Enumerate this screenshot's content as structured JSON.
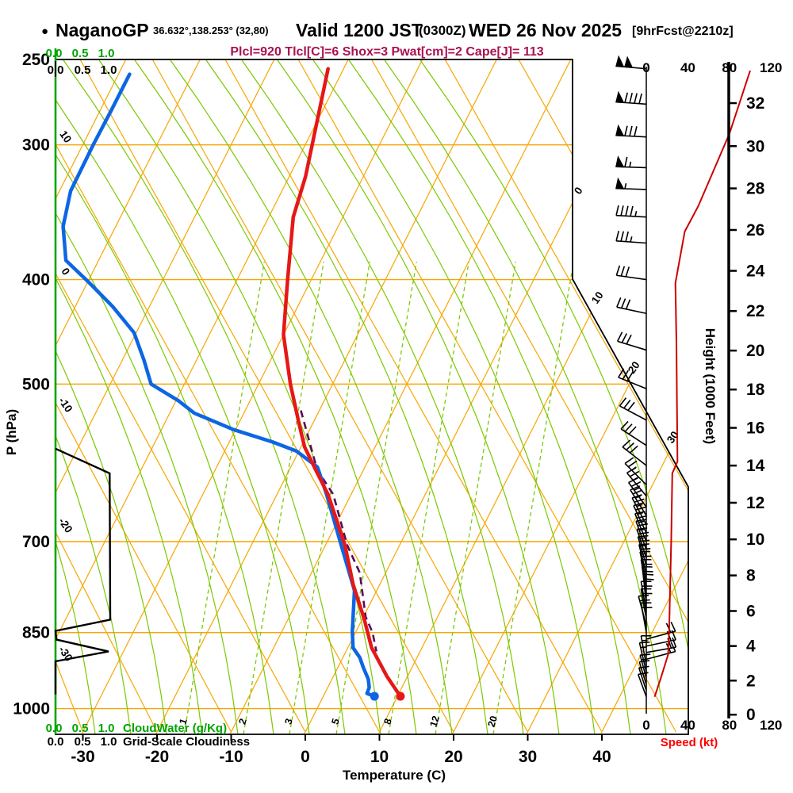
{
  "title": {
    "bullet": "●",
    "station": "NaganoGP",
    "coords": "36.632°,138.253° (32,80)",
    "valid": "Valid 1200 JST",
    "zulu": "(0300Z)",
    "date": "WED 26 Nov 2025",
    "fcst": "[9hrFcst@2210z]"
  },
  "subtitle": "Plcl=920 Tlcl[C]=6 Shox=3 Pwat[cm]=2 Cape[J]= 113",
  "axes": {
    "pressure_label": "P (hPa)",
    "temperature_label": "Temperature (C)",
    "height_label": "Height (1000 Feet)",
    "speed_label": "Speed (kt)"
  },
  "scales": {
    "ticks": [
      "0.0",
      "0.5",
      "1.0"
    ],
    "cloudwater_label": "CloudWater (g/Kg)",
    "cloudiness_label": "Grid-Scale Cloudiness"
  },
  "colors": {
    "isoline_orange": "#f7a600",
    "adiabat_green": "#7cc800",
    "axis_green": "#00a400",
    "temperature_red": "#e61717",
    "dewpoint_blue": "#0c66e4",
    "parcel_purple": "#5a0b5a",
    "speed_red": "#cc0000",
    "label_red": "#ff0000",
    "subtitle_magenta": "#aa1150",
    "black": "#000000"
  },
  "chart_data": {
    "type": "skew-t-log-p sounding",
    "pressure_ticks_hpa": [
      250,
      300,
      400,
      500,
      700,
      850,
      1000
    ],
    "temperature_ticks_c": [
      -30,
      -20,
      -10,
      0,
      10,
      20,
      30,
      40
    ],
    "height_ticks_kft": [
      0,
      2,
      4,
      6,
      8,
      10,
      12,
      14,
      16,
      18,
      20,
      22,
      24,
      26,
      28,
      30,
      32
    ],
    "speed_ticks_kt": [
      0,
      40,
      80,
      120
    ],
    "isotherm_edge_labels_c": [
      0,
      10,
      20,
      30
    ],
    "dry_adiabat_edge_labels_c": [
      10,
      0,
      -10,
      -20,
      -30
    ],
    "mixing_ratio_labels_gkg": [
      1,
      2,
      3,
      5,
      8,
      12,
      20
    ],
    "temperature_profile_p_t": [
      [
        255,
        -42.1
      ],
      [
        321,
        -37.8
      ],
      [
        350,
        -36.7
      ],
      [
        400,
        -33.2
      ],
      [
        450,
        -30.0
      ],
      [
        500,
        -25.7
      ],
      [
        547,
        -21.6
      ],
      [
        572,
        -19.5
      ],
      [
        602,
        -16.3
      ],
      [
        633,
        -13.1
      ],
      [
        705,
        -7.4
      ],
      [
        767,
        -3.6
      ],
      [
        825,
        0.2
      ],
      [
        878,
        3.2
      ],
      [
        933,
        7.2
      ],
      [
        974,
        10.4
      ]
    ],
    "dewpoint_profile_p_t": [
      [
        258,
        -68.5
      ],
      [
        279,
        -68.5
      ],
      [
        300,
        -68.6
      ],
      [
        331,
        -68.5
      ],
      [
        357,
        -67.1
      ],
      [
        384,
        -64.4
      ],
      [
        402,
        -59.9
      ],
      [
        424,
        -54.9
      ],
      [
        448,
        -50.3
      ],
      [
        475,
        -47.1
      ],
      [
        500,
        -44.5
      ],
      [
        518,
        -39.7
      ],
      [
        532,
        -36.7
      ],
      [
        551,
        -30.3
      ],
      [
        566,
        -24.1
      ],
      [
        577,
        -20.3
      ],
      [
        597,
        -16.4
      ],
      [
        633,
        -13.3
      ],
      [
        705,
        -7.9
      ],
      [
        738,
        -5.6
      ],
      [
        777,
        -3.0
      ],
      [
        848,
        -0.5
      ],
      [
        878,
        0.7
      ],
      [
        897,
        2.3
      ],
      [
        917,
        3.5
      ],
      [
        939,
        4.9
      ],
      [
        956,
        5.6
      ],
      [
        968,
        5.7
      ],
      [
        974,
        6.9
      ]
    ],
    "parcel_profile_p_t": [
      [
        529,
        -22.5
      ],
      [
        600,
        -16.3
      ],
      [
        633,
        -12.4
      ],
      [
        705,
        -7.1
      ],
      [
        748,
        -3.5
      ],
      [
        822,
        0.3
      ],
      [
        850,
        2.3
      ],
      [
        885,
        4.1
      ]
    ],
    "wind_speed_profile_p_kt": [
      [
        256,
        100
      ],
      [
        293,
        80
      ],
      [
        342,
        50
      ],
      [
        361,
        37
      ],
      [
        403,
        28
      ],
      [
        458,
        29
      ],
      [
        590,
        30
      ],
      [
        605,
        25
      ],
      [
        700,
        24
      ],
      [
        847,
        22
      ],
      [
        891,
        21
      ],
      [
        937,
        14
      ],
      [
        975,
        8
      ]
    ],
    "wind_barbs_p_kt_dir": [
      [
        255,
        100,
        175
      ],
      [
        275,
        90,
        176
      ],
      [
        295,
        80,
        177
      ],
      [
        315,
        65,
        178
      ],
      [
        330,
        55,
        178
      ],
      [
        350,
        45,
        177
      ],
      [
        370,
        35,
        176
      ],
      [
        400,
        30,
        172
      ],
      [
        430,
        30,
        168
      ],
      [
        465,
        30,
        163
      ],
      [
        505,
        30,
        158
      ],
      [
        540,
        30,
        152
      ],
      [
        570,
        30,
        147
      ],
      [
        595,
        28,
        142
      ],
      [
        620,
        26,
        135
      ],
      [
        635,
        25,
        130
      ],
      [
        650,
        25,
        126
      ],
      [
        662,
        24,
        122
      ],
      [
        675,
        24,
        118
      ],
      [
        687,
        24,
        115
      ],
      [
        700,
        24,
        112
      ],
      [
        712,
        23,
        110
      ],
      [
        725,
        23,
        108
      ],
      [
        737,
        23,
        106
      ],
      [
        750,
        23,
        104
      ],
      [
        762,
        22,
        102
      ],
      [
        775,
        22,
        100
      ],
      [
        787,
        22,
        98
      ],
      [
        800,
        22,
        96
      ],
      [
        812,
        22,
        100
      ],
      [
        825,
        21,
        100
      ],
      [
        837,
        21,
        105
      ],
      [
        850,
        21,
        100
      ],
      [
        862,
        20,
        15
      ],
      [
        875,
        20,
        12
      ],
      [
        887,
        19,
        10
      ],
      [
        900,
        18,
        15
      ],
      [
        912,
        17,
        100
      ],
      [
        925,
        15,
        103
      ],
      [
        937,
        14,
        105
      ],
      [
        950,
        12,
        107
      ],
      [
        962,
        10,
        108
      ],
      [
        975,
        8,
        110
      ]
    ],
    "cloudiness_profile_p_frac": [
      [
        574,
        0
      ],
      [
        605,
        1.02
      ],
      [
        827,
        1.03
      ],
      [
        847,
        0
      ],
      [
        863,
        0.02
      ],
      [
        885,
        1.0
      ],
      [
        904,
        0
      ],
      [
        970,
        0
      ]
    ],
    "cloud_water_profile_p_gkg": [
      [
        250,
        0
      ],
      [
        1013,
        0
      ]
    ],
    "surface_temperature_c": 10.4,
    "surface_dewpoint_c": 6.9,
    "lcl_hpa": 920,
    "cape_j": 113
  }
}
